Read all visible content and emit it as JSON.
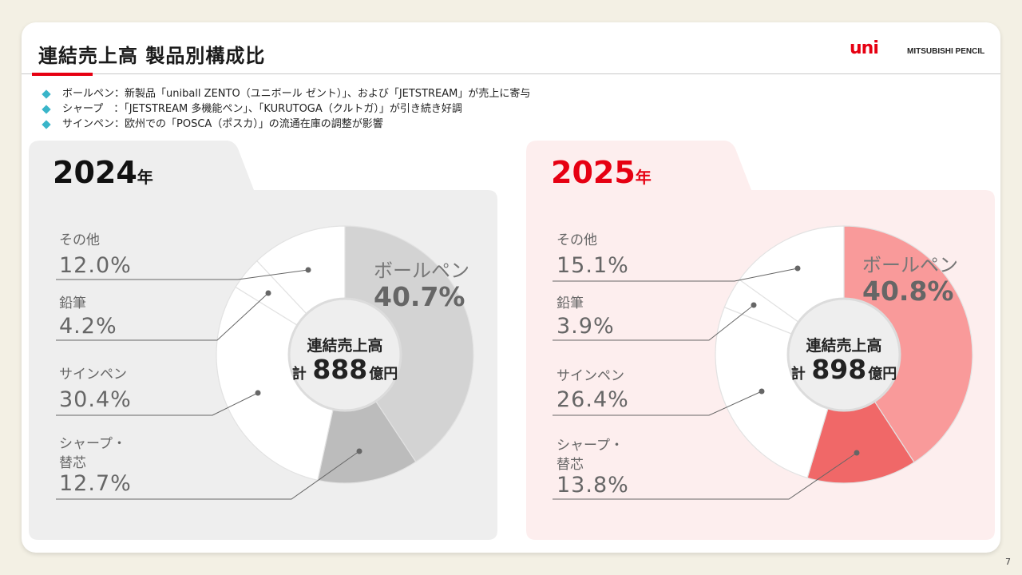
{
  "header": {
    "title": "連結売上高 製品別構成比",
    "logo_mark": "uni",
    "logo_sub": "MITSUBISHI PENCIL"
  },
  "bullets": [
    "ボールペン：新製品「uniball ZENTO（ユニボール ゼント）」、および「JETSTREAM」が売上に寄与",
    "シャープ　：「JETSTREAM 多機能ペン」、「KURUTOGA（クルトガ）」が引き続き好調",
    "サインペン：欧州での「POSCA（ポスカ）」の流通在庫の調整が影響"
  ],
  "center_title": "連結売上高",
  "total_prefix": "計",
  "total_unit": "億円",
  "colors": {
    "accent": "#e60012",
    "bullet": "#39b5c9",
    "panel_2024": "#eeeeee",
    "panel_2025": "#fdeeee"
  },
  "chart_data": [
    {
      "type": "pie",
      "year": "2024",
      "year_suffix": "年",
      "total": "888",
      "segments": [
        {
          "name": "ボールペン",
          "name_lines": [
            "ボールペン"
          ],
          "value": 40.7,
          "label": "40.7%",
          "color": "#d3d3d3"
        },
        {
          "name": "シャープ・替芯",
          "name_lines": [
            "シャープ・",
            "替芯"
          ],
          "value": 12.7,
          "label": "12.7%",
          "color": "#bcbcbc"
        },
        {
          "name": "サインペン",
          "name_lines": [
            "サインペン"
          ],
          "value": 30.4,
          "label": "30.4%",
          "color": "#ffffff"
        },
        {
          "name": "鉛筆",
          "name_lines": [
            "鉛筆"
          ],
          "value": 4.2,
          "label": "4.2%",
          "color": "#ffffff"
        },
        {
          "name": "その他",
          "name_lines": [
            "その他"
          ],
          "value": 12.0,
          "label": "12.0%",
          "color": "#ffffff"
        }
      ]
    },
    {
      "type": "pie",
      "year": "2025",
      "year_suffix": "年",
      "total": "898",
      "segments": [
        {
          "name": "ボールペン",
          "name_lines": [
            "ボールペン"
          ],
          "value": 40.8,
          "label": "40.8%",
          "color": "#f99a9a"
        },
        {
          "name": "シャープ・替芯",
          "name_lines": [
            "シャープ・",
            "替芯"
          ],
          "value": 13.8,
          "label": "13.8%",
          "color": "#f06868"
        },
        {
          "name": "サインペン",
          "name_lines": [
            "サインペン"
          ],
          "value": 26.4,
          "label": "26.4%",
          "color": "#ffffff"
        },
        {
          "name": "鉛筆",
          "name_lines": [
            "鉛筆"
          ],
          "value": 3.9,
          "label": "3.9%",
          "color": "#ffffff"
        },
        {
          "name": "その他",
          "name_lines": [
            "その他"
          ],
          "value": 15.1,
          "label": "15.1%",
          "color": "#ffffff"
        }
      ]
    }
  ],
  "page_number": "7"
}
